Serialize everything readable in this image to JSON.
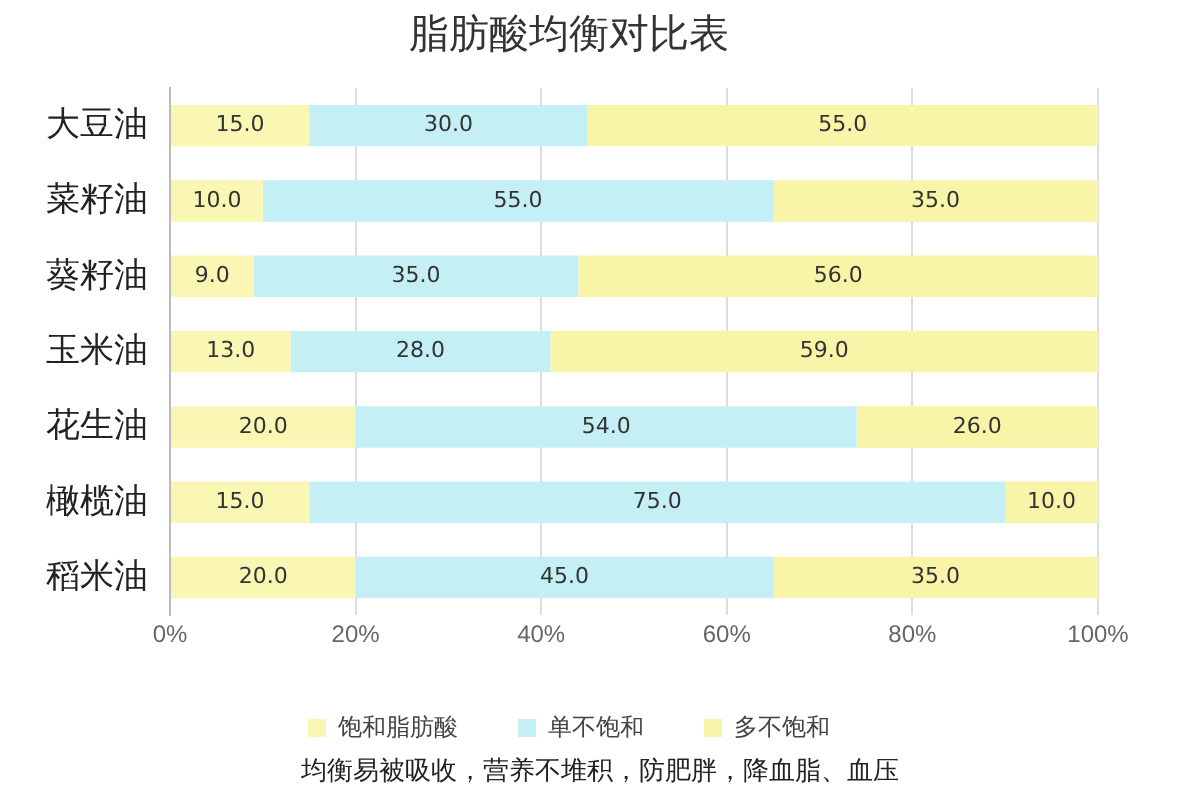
{
  "chart_data": {
    "type": "bar",
    "orientation": "horizontal",
    "stacked": true,
    "title": "脂肪酸均衡对比表",
    "categories": [
      "大豆油",
      "菜籽油",
      "葵籽油",
      "玉米油",
      "花生油",
      "橄榄油",
      "稻米油"
    ],
    "series": [
      {
        "name": "饱和脂肪酸",
        "color": "#faf6b4",
        "values": [
          15,
          10,
          9,
          13,
          20,
          15,
          20
        ],
        "value_labels": [
          "15.0",
          "10.0",
          "9.0",
          "13.0",
          "20.0",
          "15.0",
          "20.0"
        ]
      },
      {
        "name": "单不饱和",
        "color": "#c4eff4",
        "values": [
          30,
          55,
          35,
          28,
          54,
          75,
          45
        ],
        "value_labels": [
          "30.0",
          "55.0",
          "35.0",
          "28.0",
          "54.0",
          "75.0",
          "45.0"
        ]
      },
      {
        "name": "多不饱和",
        "color": "#f8f5a8",
        "values": [
          55,
          35,
          56,
          59,
          26,
          10,
          35
        ],
        "value_labels": [
          "55.0",
          "35.0",
          "56.0",
          "59.0",
          "26.0",
          "10.0",
          "35.0"
        ]
      }
    ],
    "xlim": [
      0,
      100
    ],
    "xticks": [
      {
        "value": 0,
        "label": "0%"
      },
      {
        "value": 20,
        "label": "20%"
      },
      {
        "value": 40,
        "label": "40%"
      },
      {
        "value": 60,
        "label": "60%"
      },
      {
        "value": 80,
        "label": "80%"
      },
      {
        "value": 100,
        "label": "100%"
      }
    ],
    "grid": "x",
    "legend": "bottom",
    "annotations": [
      "均衡易被吸收，营养不堆积，防肥胖，降血脂、血压"
    ]
  }
}
